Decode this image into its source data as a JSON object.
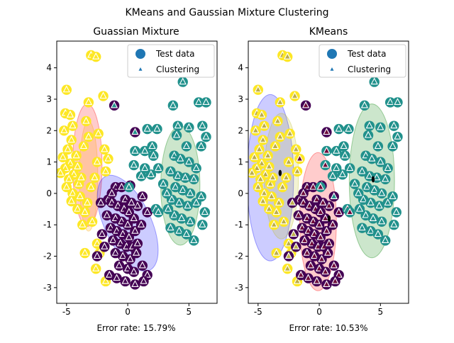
{
  "figure": {
    "suptitle": "KMeans and Gaussian Mixture Clustering"
  },
  "colors": {
    "purple": "#440154",
    "teal": "#21918c",
    "yellow": "#fde725",
    "legend_marker": "#1f77b4",
    "ellipse_red": "#ff0000",
    "ellipse_blue": "#0000ff",
    "ellipse_green": "#008000",
    "ellipse_orange": "#ffa500",
    "ellipse_olive": "#bcbd22"
  },
  "chart_data": [
    {
      "type": "scatter",
      "title": "Guassian Mixture",
      "xlabel": "Error rate: 15.79%",
      "ylabel": "",
      "xlim": [
        -5.8,
        7.3
      ],
      "ylim": [
        -3.5,
        4.85
      ],
      "xticks": [
        -5,
        0,
        5
      ],
      "yticks": [
        -3,
        -2,
        -1,
        0,
        1,
        2,
        3,
        4
      ],
      "legend": {
        "placement": "top-right",
        "entries": [
          "Test data",
          "Clustering"
        ]
      },
      "ellipses": [
        {
          "center": [
            -3.3,
            0.9
          ],
          "width": 2.4,
          "height": 3.9,
          "angle": 0,
          "color": "red"
        },
        {
          "center": [
            -3.2,
            0.55
          ],
          "width": 1.5,
          "height": 3.5,
          "angle": 0,
          "color": "orange"
        },
        {
          "center": [
            0.0,
            -0.95
          ],
          "width": 3.8,
          "height": 3.3,
          "angle": 25,
          "color": "blue"
        },
        {
          "center": [
            4.3,
            0.25
          ],
          "width": 3.2,
          "height": 3.8,
          "angle": 0,
          "color": "green"
        }
      ],
      "test_points": [
        {
          "cluster": "yellow",
          "points": [
            [
              -3.0,
              4.4
            ],
            [
              -2.6,
              4.35
            ],
            [
              -5.0,
              3.3
            ],
            [
              -3.2,
              2.9
            ],
            [
              -2.0,
              3.1
            ],
            [
              -2.4,
              1.9
            ],
            [
              -1.9,
              1.4
            ],
            [
              -1.6,
              1.1
            ],
            [
              -1.8,
              0.7
            ],
            [
              -2.5,
              -1.6
            ],
            [
              -2.3,
              -1.9
            ],
            [
              -3.5,
              -1.9
            ],
            [
              -2.6,
              -2.4
            ],
            [
              -1.8,
              -2.8
            ],
            [
              -5.1,
              2.55
            ],
            [
              -4.7,
              2.5
            ],
            [
              -4.5,
              2.15
            ],
            [
              -5.2,
              2.0
            ],
            [
              -4.6,
              1.7
            ],
            [
              -4.9,
              1.4
            ],
            [
              -4.2,
              1.2
            ],
            [
              -5.3,
              1.15
            ],
            [
              -4.7,
              0.95
            ],
            [
              -4.1,
              0.85
            ],
            [
              -5.1,
              0.8
            ],
            [
              -4.4,
              0.6
            ],
            [
              -5.5,
              0.65
            ],
            [
              -4.8,
              0.45
            ],
            [
              -4.0,
              0.3
            ],
            [
              -5.0,
              0.2
            ],
            [
              -4.5,
              0.0
            ],
            [
              -3.9,
              -0.1
            ],
            [
              -4.6,
              -0.25
            ],
            [
              -4.1,
              -0.5
            ],
            [
              -3.5,
              -0.6
            ],
            [
              -3.8,
              0.5
            ],
            [
              -3.6,
              1.5
            ],
            [
              -3.2,
              1.8
            ],
            [
              -3.0,
              0.2
            ],
            [
              -2.7,
              0.5
            ],
            [
              -3.3,
              -0.3
            ],
            [
              -2.9,
              -0.9
            ],
            [
              -3.7,
              -1.0
            ],
            [
              -2.5,
              1.0
            ],
            [
              -3.4,
              2.3
            ]
          ]
        },
        {
          "cluster": "purple",
          "points": [
            [
              -1.1,
              2.8
            ],
            [
              0.6,
              1.95
            ],
            [
              -1.0,
              0.2
            ],
            [
              -0.5,
              0.2
            ],
            [
              0.2,
              0.25
            ],
            [
              -1.6,
              -0.2
            ],
            [
              -1.3,
              -0.3
            ],
            [
              -0.8,
              -0.4
            ],
            [
              -0.3,
              -0.5
            ],
            [
              0.1,
              -0.6
            ],
            [
              -1.0,
              -0.8
            ],
            [
              -0.5,
              -0.9
            ],
            [
              0.0,
              -1.0
            ],
            [
              0.5,
              -0.8
            ],
            [
              -1.4,
              -1.1
            ],
            [
              -0.9,
              -1.2
            ],
            [
              -0.4,
              -1.3
            ],
            [
              0.1,
              -1.4
            ],
            [
              0.6,
              -1.2
            ],
            [
              -1.2,
              -1.5
            ],
            [
              -0.6,
              -1.6
            ],
            [
              -0.1,
              -1.7
            ],
            [
              0.4,
              -1.7
            ],
            [
              -1.0,
              -1.9
            ],
            [
              -0.4,
              -2.0
            ],
            [
              0.2,
              -2.1
            ],
            [
              0.7,
              -1.9
            ],
            [
              -0.7,
              -2.3
            ],
            [
              0.0,
              -2.4
            ],
            [
              0.5,
              -2.5
            ],
            [
              1.2,
              -2.3
            ],
            [
              -1.5,
              -2.6
            ],
            [
              1.6,
              -2.6
            ],
            [
              1.3,
              -2.8
            ],
            [
              -2.5,
              -2.0
            ],
            [
              0.8,
              -0.4
            ],
            [
              0.8,
              -1.6
            ],
            [
              -1.7,
              -0.7
            ],
            [
              -2.1,
              -1.3
            ],
            [
              -1.3,
              0.0
            ],
            [
              -0.2,
              -0.2
            ],
            [
              0.3,
              -0.3
            ],
            [
              1.2,
              -0.1
            ],
            [
              1.6,
              -0.6
            ],
            [
              1.1,
              -1.0
            ],
            [
              -0.9,
              -2.7
            ],
            [
              -0.2,
              -2.8
            ],
            [
              0.6,
              -2.9
            ],
            [
              -2.2,
              -0.3
            ],
            [
              -1.9,
              -1.7
            ]
          ]
        },
        {
          "cluster": "teal",
          "points": [
            [
              4.5,
              3.55
            ],
            [
              3.7,
              2.8
            ],
            [
              5.8,
              2.9
            ],
            [
              6.4,
              2.9
            ],
            [
              4.1,
              2.15
            ],
            [
              5.0,
              2.1
            ],
            [
              6.1,
              2.15
            ],
            [
              6.4,
              1.8
            ],
            [
              1.6,
              2.05
            ],
            [
              2.4,
              2.05
            ],
            [
              1.4,
              1.35
            ],
            [
              2.0,
              1.5
            ],
            [
              2.1,
              1.2
            ],
            [
              0.6,
              1.35
            ],
            [
              2.5,
              0.8
            ],
            [
              0.5,
              0.9
            ],
            [
              1.4,
              0.8
            ],
            [
              1.9,
              0.6
            ],
            [
              0.1,
              0.2
            ],
            [
              1.1,
              0.55
            ],
            [
              2.3,
              -0.5
            ],
            [
              2.5,
              -0.6
            ],
            [
              4.0,
              1.85
            ],
            [
              4.8,
              1.5
            ],
            [
              6.0,
              1.5
            ],
            [
              3.8,
              1.2
            ],
            [
              4.3,
              1.1
            ],
            [
              5.0,
              1.0
            ],
            [
              5.6,
              0.8
            ],
            [
              3.5,
              0.7
            ],
            [
              4.1,
              0.55
            ],
            [
              4.7,
              0.5
            ],
            [
              5.4,
              0.45
            ],
            [
              3.9,
              0.2
            ],
            [
              4.5,
              0.1
            ],
            [
              5.1,
              0.0
            ],
            [
              3.6,
              -0.2
            ],
            [
              4.2,
              -0.3
            ],
            [
              4.9,
              -0.4
            ],
            [
              5.6,
              -0.3
            ],
            [
              3.8,
              -0.7
            ],
            [
              4.4,
              -0.8
            ],
            [
              5.1,
              -0.9
            ],
            [
              3.5,
              -1.1
            ],
            [
              4.2,
              -1.2
            ],
            [
              4.8,
              -1.3
            ],
            [
              5.4,
              -1.5
            ],
            [
              6.1,
              -1.0
            ],
            [
              6.3,
              -0.6
            ],
            [
              6.0,
              -0.1
            ],
            [
              3.2,
              0.0
            ],
            [
              2.9,
              0.3
            ],
            [
              3.3,
              -0.5
            ]
          ]
        }
      ],
      "clustering_triangles": "drawn on every test point (white when on the point cluster color)"
    },
    {
      "type": "scatter",
      "title": "KMeans",
      "xlabel": "Error rate: 10.53%",
      "ylabel": "",
      "xlim": [
        -5.8,
        7.3
      ],
      "ylim": [
        -3.5,
        4.85
      ],
      "xticks": [
        -5,
        0,
        5
      ],
      "yticks": [
        -3,
        -2,
        -1,
        0,
        1,
        2,
        3,
        4
      ],
      "legend": {
        "placement": "top-right",
        "entries": [
          "Test data",
          "Clustering"
        ]
      },
      "ellipses": [
        {
          "center": [
            -4.0,
            0.5
          ],
          "width": 3.8,
          "height": 5.3,
          "angle": 0,
          "color": "blue"
        },
        {
          "center": [
            -3.1,
            0.55
          ],
          "width": 2.8,
          "height": 4.0,
          "angle": 0,
          "color": "olive"
        },
        {
          "center": [
            -0.1,
            -0.9
          ],
          "width": 3.0,
          "height": 4.4,
          "angle": 0,
          "color": "red"
        },
        {
          "center": [
            4.3,
            0.4
          ],
          "width": 3.7,
          "height": 4.9,
          "angle": 0,
          "color": "green"
        }
      ],
      "centroids": [
        [
          -3.2,
          0.65
        ],
        [
          0.8,
          -0.8
        ],
        [
          4.4,
          0.45
        ]
      ]
    }
  ]
}
